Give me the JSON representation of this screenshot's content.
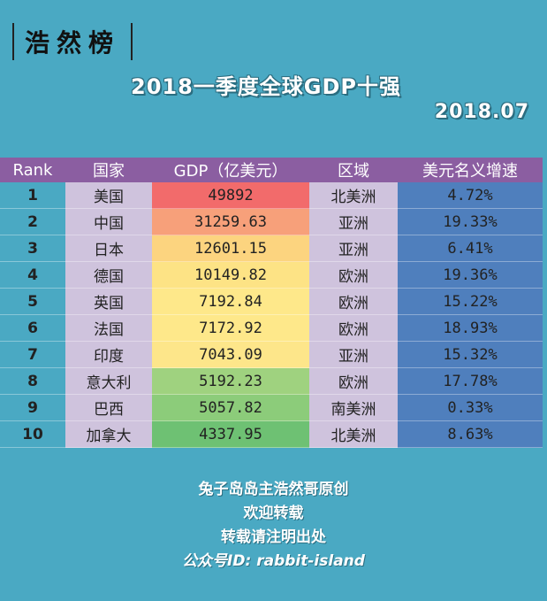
{
  "brand": "浩然榜",
  "title": "2018一季度全球GDP十强",
  "date": "2018.07",
  "table": {
    "headers": [
      "Rank",
      "国家",
      "GDP（亿美元）",
      "区域",
      "美元名义增速"
    ],
    "rows": [
      {
        "rank": "1",
        "country": "美国",
        "gdp": "49892",
        "region": "北美洲",
        "growth": "4.72%",
        "color": "#f26b6b"
      },
      {
        "rank": "2",
        "country": "中国",
        "gdp": "31259.63",
        "region": "亚洲",
        "growth": "19.33%",
        "color": "#f7a07a"
      },
      {
        "rank": "3",
        "country": "日本",
        "gdp": "12601.15",
        "region": "亚洲",
        "growth": "6.41%",
        "color": "#fcd47f"
      },
      {
        "rank": "4",
        "country": "德国",
        "gdp": "10149.82",
        "region": "欧洲",
        "growth": "19.36%",
        "color": "#fde385"
      },
      {
        "rank": "5",
        "country": "英国",
        "gdp": "7192.84",
        "region": "欧洲",
        "growth": "15.22%",
        "color": "#fee88a"
      },
      {
        "rank": "6",
        "country": "法国",
        "gdp": "7172.92",
        "region": "欧洲",
        "growth": "18.93%",
        "color": "#fee88a"
      },
      {
        "rank": "7",
        "country": "印度",
        "gdp": "7043.09",
        "region": "亚洲",
        "growth": "15.32%",
        "color": "#fde68a"
      },
      {
        "rank": "8",
        "country": "意大利",
        "gdp": "5192.23",
        "region": "欧洲",
        "growth": "17.78%",
        "color": "#9fd27f"
      },
      {
        "rank": "9",
        "country": "巴西",
        "gdp": "5057.82",
        "region": "南美洲",
        "growth": "0.33%",
        "color": "#8ccc7a"
      },
      {
        "rank": "10",
        "country": "加拿大",
        "gdp": "4337.95",
        "region": "北美洲",
        "growth": "8.63%",
        "color": "#6ec173"
      }
    ]
  },
  "footer": {
    "line1": "兔子岛岛主浩然哥原创",
    "line2": "欢迎转载",
    "line3": "转载请注明出处",
    "line4": "公众号ID: rabbit-island"
  }
}
